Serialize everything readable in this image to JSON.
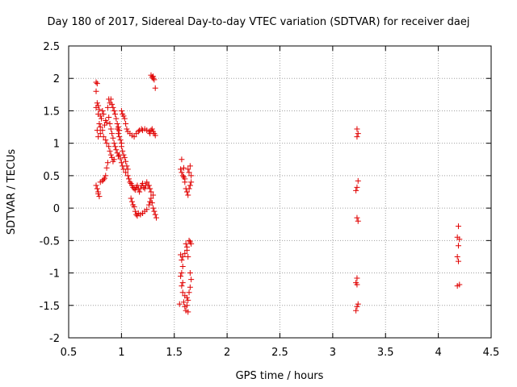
{
  "chart_data": {
    "type": "scatter",
    "title": "Day 180 of 2017, Sidereal Day-to-day VTEC variation (SDTVAR) for receiver daej",
    "xlabel": "GPS time / hours",
    "ylabel": "SDTVAR / TECUs",
    "xlim": [
      0.5,
      4.5
    ],
    "ylim": [
      -2,
      2.5
    ],
    "xticks": [
      0.5,
      1,
      1.5,
      2,
      2.5,
      3,
      3.5,
      4,
      4.5
    ],
    "xtick_labels": [
      "0.5",
      "1",
      "1.5",
      "2",
      "2.5",
      "3",
      "3.5",
      "4",
      "4.5"
    ],
    "yticks": [
      -2,
      -1.5,
      -1,
      -0.5,
      0,
      0.5,
      1,
      1.5,
      2,
      2.5
    ],
    "ytick_labels": [
      "-2",
      "-1.5",
      "-1",
      "-0.5",
      "0",
      "0.5",
      "1",
      "1.5",
      "2",
      "2.5"
    ],
    "grid": true,
    "marker": "+",
    "color": "#e00000",
    "series": [
      {
        "name": "SDTVAR",
        "points": [
          [
            0.76,
            1.94
          ],
          [
            0.77,
            1.92
          ],
          [
            0.76,
            1.8
          ],
          [
            0.77,
            1.62
          ],
          [
            0.78,
            1.58
          ],
          [
            0.79,
            1.52
          ],
          [
            0.76,
            1.55
          ],
          [
            0.78,
            1.45
          ],
          [
            0.8,
            1.42
          ],
          [
            0.81,
            1.38
          ],
          [
            0.82,
            1.5
          ],
          [
            0.83,
            1.45
          ],
          [
            0.79,
            1.3
          ],
          [
            0.8,
            1.25
          ],
          [
            0.82,
            1.2
          ],
          [
            0.84,
            1.28
          ],
          [
            0.85,
            1.35
          ],
          [
            0.86,
            1.32
          ],
          [
            0.77,
            1.2
          ],
          [
            0.78,
            1.1
          ],
          [
            0.8,
            1.15
          ],
          [
            0.83,
            1.1
          ],
          [
            0.85,
            1.05
          ],
          [
            0.86,
            1.0
          ],
          [
            0.87,
            1.55
          ],
          [
            0.88,
            1.68
          ],
          [
            0.89,
            1.62
          ],
          [
            0.9,
            1.68
          ],
          [
            0.91,
            1.6
          ],
          [
            0.92,
            1.55
          ],
          [
            0.93,
            1.5
          ],
          [
            0.94,
            1.45
          ],
          [
            0.95,
            1.38
          ],
          [
            0.96,
            1.3
          ],
          [
            0.97,
            1.25
          ],
          [
            0.98,
            1.2
          ],
          [
            0.88,
            1.4
          ],
          [
            0.89,
            1.3
          ],
          [
            0.9,
            1.22
          ],
          [
            0.91,
            1.15
          ],
          [
            0.92,
            1.08
          ],
          [
            0.93,
            1.0
          ],
          [
            0.94,
            0.95
          ],
          [
            0.95,
            0.9
          ],
          [
            0.96,
            0.85
          ],
          [
            0.97,
            0.8
          ],
          [
            0.98,
            0.82
          ],
          [
            0.99,
            0.76
          ],
          [
            0.88,
            0.95
          ],
          [
            0.89,
            0.88
          ],
          [
            0.9,
            0.82
          ],
          [
            0.91,
            0.78
          ],
          [
            0.92,
            0.72
          ],
          [
            0.93,
            0.75
          ],
          [
            0.87,
            0.7
          ],
          [
            0.86,
            0.62
          ],
          [
            0.85,
            0.5
          ],
          [
            0.84,
            0.46
          ],
          [
            0.83,
            0.44
          ],
          [
            0.82,
            0.42
          ],
          [
            0.76,
            0.35
          ],
          [
            0.77,
            0.3
          ],
          [
            0.78,
            0.25
          ],
          [
            0.79,
            0.18
          ],
          [
            0.78,
            0.22
          ],
          [
            0.8,
            0.4
          ],
          [
            0.96,
            1.22
          ],
          [
            0.97,
            1.15
          ],
          [
            0.98,
            1.1
          ],
          [
            0.99,
            1.05
          ],
          [
            1.0,
            1.0
          ],
          [
            1.0,
            0.95
          ],
          [
            1.01,
            0.88
          ],
          [
            1.02,
            0.82
          ],
          [
            1.03,
            0.78
          ],
          [
            1.04,
            0.72
          ],
          [
            1.05,
            0.65
          ],
          [
            1.06,
            0.6
          ],
          [
            1.0,
            1.5
          ],
          [
            1.01,
            1.45
          ],
          [
            1.02,
            1.42
          ],
          [
            1.03,
            1.38
          ],
          [
            1.04,
            1.3
          ],
          [
            1.05,
            1.22
          ],
          [
            1.06,
            1.18
          ],
          [
            1.08,
            1.15
          ],
          [
            1.1,
            1.12
          ],
          [
            1.12,
            1.1
          ],
          [
            1.14,
            1.15
          ],
          [
            1.16,
            1.18
          ],
          [
            1.17,
            1.2
          ],
          [
            1.19,
            1.22
          ],
          [
            1.2,
            1.2
          ],
          [
            1.22,
            1.22
          ],
          [
            1.24,
            1.2
          ],
          [
            1.26,
            1.18
          ],
          [
            1.27,
            1.15
          ],
          [
            1.28,
            1.2
          ],
          [
            1.29,
            1.22
          ],
          [
            1.3,
            1.18
          ],
          [
            1.31,
            1.15
          ],
          [
            1.32,
            1.12
          ],
          [
            1.0,
            0.7
          ],
          [
            1.01,
            0.65
          ],
          [
            1.02,
            0.6
          ],
          [
            1.04,
            0.55
          ],
          [
            1.06,
            0.5
          ],
          [
            1.07,
            0.45
          ],
          [
            1.08,
            0.4
          ],
          [
            1.09,
            0.38
          ],
          [
            1.1,
            0.35
          ],
          [
            1.11,
            0.32
          ],
          [
            1.12,
            0.3
          ],
          [
            1.13,
            0.28
          ],
          [
            1.14,
            0.32
          ],
          [
            1.15,
            0.35
          ],
          [
            1.16,
            0.3
          ],
          [
            1.17,
            0.25
          ],
          [
            1.18,
            0.3
          ],
          [
            1.19,
            0.35
          ],
          [
            1.2,
            0.38
          ],
          [
            1.21,
            0.32
          ],
          [
            1.22,
            0.3
          ],
          [
            1.23,
            0.35
          ],
          [
            1.24,
            0.4
          ],
          [
            1.25,
            0.35
          ],
          [
            1.09,
            0.15
          ],
          [
            1.1,
            0.1
          ],
          [
            1.11,
            0.05
          ],
          [
            1.12,
            0.02
          ],
          [
            1.13,
            -0.05
          ],
          [
            1.14,
            -0.1
          ],
          [
            1.15,
            -0.12
          ],
          [
            1.16,
            -0.08
          ],
          [
            1.18,
            -0.1
          ],
          [
            1.2,
            -0.08
          ],
          [
            1.22,
            -0.05
          ],
          [
            1.24,
            -0.02
          ],
          [
            1.26,
            0.05
          ],
          [
            1.27,
            0.1
          ],
          [
            1.28,
            0.15
          ],
          [
            1.29,
            0.08
          ],
          [
            1.3,
            0.0
          ],
          [
            1.31,
            -0.05
          ],
          [
            1.32,
            -0.1
          ],
          [
            1.33,
            -0.15
          ],
          [
            1.3,
            0.2
          ],
          [
            1.28,
            0.25
          ],
          [
            1.27,
            0.3
          ],
          [
            1.26,
            0.35
          ],
          [
            1.28,
            2.05
          ],
          [
            1.29,
            2.02
          ],
          [
            1.3,
            2.0
          ],
          [
            1.31,
            1.98
          ],
          [
            1.3,
            2.03
          ],
          [
            1.32,
            1.85
          ],
          [
            1.56,
            0.6
          ],
          [
            1.57,
            0.55
          ],
          [
            1.58,
            0.5
          ],
          [
            1.59,
            0.48
          ],
          [
            1.6,
            0.45
          ],
          [
            1.57,
            0.75
          ],
          [
            1.59,
            0.62
          ],
          [
            1.6,
            0.4
          ],
          [
            1.61,
            0.3
          ],
          [
            1.62,
            0.25
          ],
          [
            1.63,
            0.2
          ],
          [
            1.64,
            0.3
          ],
          [
            1.65,
            0.35
          ],
          [
            1.66,
            0.4
          ],
          [
            1.64,
            0.55
          ],
          [
            1.63,
            0.6
          ],
          [
            1.65,
            0.65
          ],
          [
            1.66,
            0.5
          ],
          [
            1.56,
            -0.72
          ],
          [
            1.57,
            -0.8
          ],
          [
            1.58,
            -0.9
          ],
          [
            1.56,
            -1.05
          ],
          [
            1.57,
            -1.2
          ],
          [
            1.58,
            -1.3
          ],
          [
            1.59,
            -1.45
          ],
          [
            1.6,
            -1.52
          ],
          [
            1.61,
            -1.58
          ],
          [
            1.62,
            -1.5
          ],
          [
            1.63,
            -1.42
          ],
          [
            1.64,
            -1.3
          ],
          [
            1.65,
            -1.22
          ],
          [
            1.66,
            -1.1
          ],
          [
            1.65,
            -1.0
          ],
          [
            1.63,
            -0.75
          ],
          [
            1.62,
            -0.6
          ],
          [
            1.61,
            -0.55
          ],
          [
            1.64,
            -0.5
          ],
          [
            1.65,
            -0.52
          ],
          [
            1.66,
            -0.55
          ],
          [
            1.62,
            -0.65
          ],
          [
            1.6,
            -0.7
          ],
          [
            1.58,
            -0.75
          ],
          [
            1.57,
            -1.0
          ],
          [
            1.58,
            -1.15
          ],
          [
            1.6,
            -1.35
          ],
          [
            1.62,
            -1.38
          ],
          [
            1.55,
            -1.48
          ],
          [
            1.63,
            -1.6
          ],
          [
            3.23,
            1.22
          ],
          [
            3.24,
            1.15
          ],
          [
            3.23,
            1.1
          ],
          [
            3.24,
            0.42
          ],
          [
            3.23,
            0.32
          ],
          [
            3.22,
            0.27
          ],
          [
            3.23,
            -0.15
          ],
          [
            3.24,
            -0.2
          ],
          [
            3.23,
            -1.08
          ],
          [
            3.22,
            -1.15
          ],
          [
            3.23,
            -1.18
          ],
          [
            3.24,
            -1.48
          ],
          [
            3.23,
            -1.52
          ],
          [
            3.22,
            -1.58
          ],
          [
            4.19,
            -0.28
          ],
          [
            4.18,
            -0.45
          ],
          [
            4.2,
            -0.48
          ],
          [
            4.19,
            -0.58
          ],
          [
            4.18,
            -0.75
          ],
          [
            4.19,
            -0.82
          ],
          [
            4.2,
            -1.18
          ],
          [
            4.18,
            -1.2
          ]
        ]
      }
    ]
  }
}
